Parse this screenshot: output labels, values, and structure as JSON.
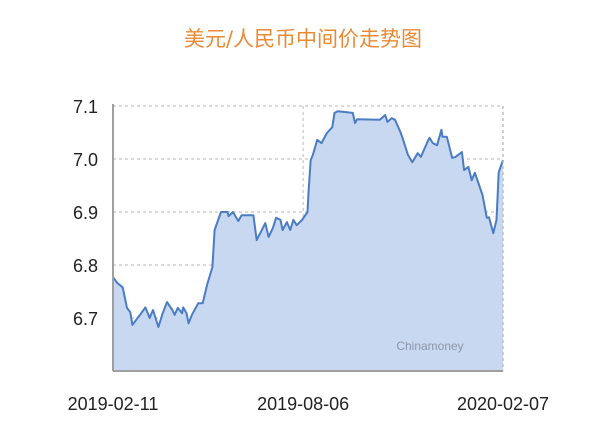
{
  "chart_data": {
    "type": "area",
    "title": "美元/人民币中间价走势图",
    "xlabel": "",
    "ylabel": "",
    "watermark": "Chinamoney",
    "xlim": [
      "2019-02-11",
      "2020-02-07"
    ],
    "ylim": [
      6.6,
      7.1
    ],
    "yticks": [
      7.1,
      7.0,
      6.9,
      6.8,
      6.7
    ],
    "ytick_labels": [
      "7.1",
      "7.0",
      "6.9",
      "6.8",
      "6.7"
    ],
    "xticks": [
      "2019-02-11",
      "2019-08-06",
      "2020-02-07"
    ],
    "grid": true,
    "legend": "none",
    "colors": {
      "line": "#4a7cc4",
      "fill": "#c9d8f1",
      "title": "#ea8a36"
    },
    "x": [
      "2019-02-11",
      "2019-02-15",
      "2019-02-20",
      "2019-02-24",
      "2019-02-27",
      "2019-03-01",
      "2019-03-08",
      "2019-03-13",
      "2019-03-17",
      "2019-03-20",
      "2019-03-25",
      "2019-03-29",
      "2019-04-02",
      "2019-04-07",
      "2019-04-09",
      "2019-04-12",
      "2019-04-16",
      "2019-04-17",
      "2019-04-20",
      "2019-04-22",
      "2019-04-25",
      "2019-05-01",
      "2019-05-05",
      "2019-05-09",
      "2019-05-14",
      "2019-05-16",
      "2019-05-22",
      "2019-05-28",
      "2019-05-29",
      "2019-06-02",
      "2019-06-07",
      "2019-06-10",
      "2019-06-21",
      "2019-06-24",
      "2019-07-02",
      "2019-07-05",
      "2019-07-09",
      "2019-07-12",
      "2019-07-16",
      "2019-07-18",
      "2019-07-22",
      "2019-07-25",
      "2019-07-28",
      "2019-07-31",
      "2019-08-05",
      "2019-08-10",
      "2019-08-11",
      "2019-08-13",
      "2019-08-15",
      "2019-08-19",
      "2019-08-23",
      "2019-08-28",
      "2019-09-02",
      "2019-09-04",
      "2019-09-07",
      "2019-09-21",
      "2019-09-23",
      "2019-09-25",
      "2019-10-16",
      "2019-10-21",
      "2019-10-23",
      "2019-10-27",
      "2019-10-30",
      "2019-11-04",
      "2019-11-06",
      "2019-11-11",
      "2019-11-15",
      "2019-11-20",
      "2019-11-23",
      "2019-11-29",
      "2019-12-01",
      "2019-12-04",
      "2019-12-08",
      "2019-12-12",
      "2019-12-13",
      "2019-12-17",
      "2019-12-22",
      "2019-12-25",
      "2019-12-31",
      "2020-01-02",
      "2020-01-06",
      "2020-01-09",
      "2020-01-12",
      "2020-01-19",
      "2020-01-23",
      "2020-01-25",
      "2020-01-29",
      "2020-02-01",
      "2020-02-03",
      "2020-02-07"
    ],
    "values": [
      6.777,
      6.766,
      6.758,
      6.719,
      6.711,
      6.687,
      6.706,
      6.72,
      6.7,
      6.715,
      6.683,
      6.709,
      6.73,
      6.715,
      6.706,
      6.719,
      6.709,
      6.72,
      6.709,
      6.69,
      6.706,
      6.728,
      6.728,
      6.762,
      6.796,
      6.866,
      6.9,
      6.9,
      6.892,
      6.9,
      6.883,
      6.894,
      6.894,
      6.847,
      6.879,
      6.853,
      6.87,
      6.889,
      6.885,
      6.866,
      6.881,
      6.866,
      6.885,
      6.875,
      6.885,
      6.9,
      6.937,
      6.998,
      7.008,
      7.036,
      7.03,
      7.049,
      7.06,
      7.087,
      7.09,
      7.087,
      7.068,
      7.075,
      7.074,
      7.083,
      7.07,
      7.077,
      7.074,
      7.051,
      7.04,
      7.008,
      6.994,
      7.011,
      7.004,
      7.032,
      7.04,
      7.03,
      7.026,
      7.055,
      7.042,
      7.042,
      7.002,
      7.004,
      7.013,
      6.979,
      6.985,
      6.96,
      6.974,
      6.932,
      6.889,
      6.89,
      6.86,
      6.885,
      6.975,
      6.998
    ]
  }
}
